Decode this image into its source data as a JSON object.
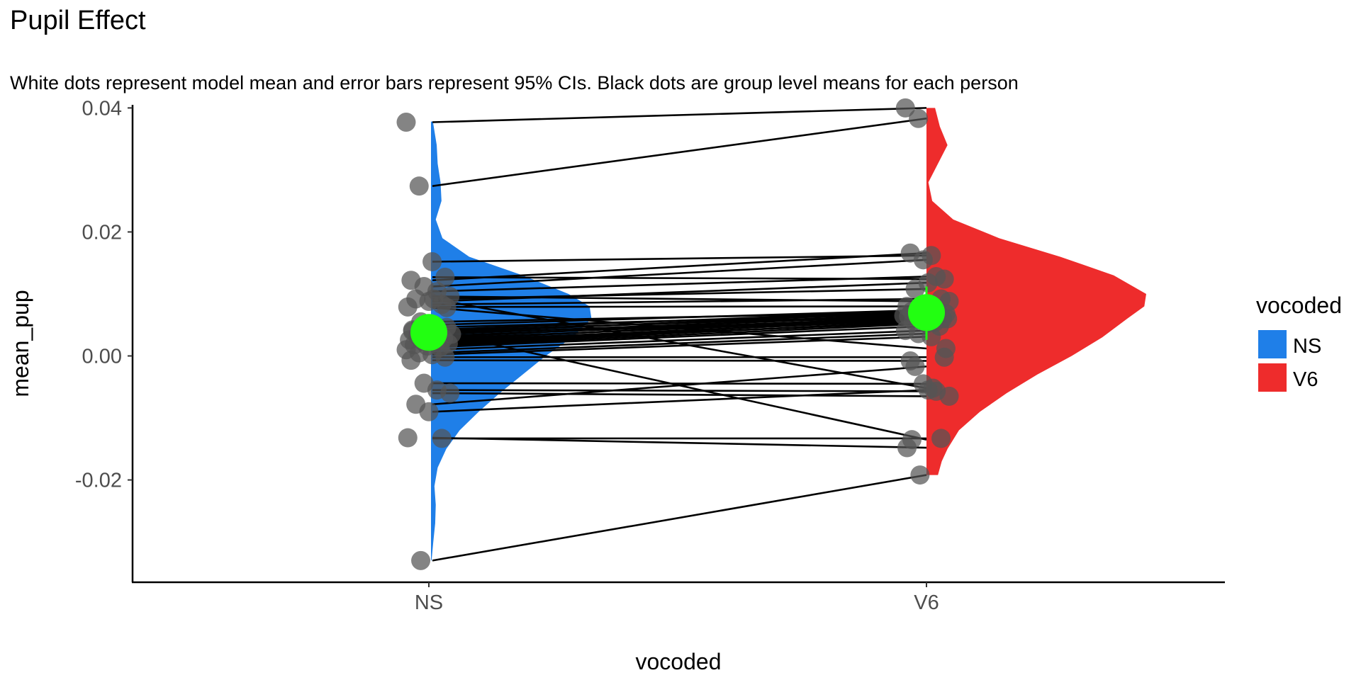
{
  "chart_data": {
    "type": "raincloud",
    "title": "Pupil Effect",
    "subtitle": "White dots represent model mean and error bars represent 95% CIs. Black dots are group level means for each person",
    "xlabel": "vocoded",
    "ylabel": "mean_pup",
    "categories": [
      "NS",
      "V6"
    ],
    "y_ticks": [
      "0.04",
      "0.02",
      "0.00",
      "-0.02"
    ],
    "y_tick_values": [
      0.04,
      0.02,
      0.0,
      -0.02
    ],
    "ylim": [
      -0.0365,
      0.0405
    ],
    "grid": false,
    "legend": {
      "title": "vocoded",
      "position": "right",
      "entries": [
        {
          "label": "NS",
          "color": "#1f7fe8"
        },
        {
          "label": "V6",
          "color": "#ee2c2c"
        }
      ]
    },
    "colors": {
      "NS": "#1f7fe8",
      "V6": "#ee2c2c",
      "model_mean": "#22ff11",
      "points": "#555555",
      "lines": "#000000"
    },
    "model_means": [
      {
        "category": "NS",
        "mean": 0.0038,
        "ci": [
          0.0025,
          0.0051
        ]
      },
      {
        "category": "V6",
        "mean": 0.007,
        "ci": [
          0.0026,
          0.0112
        ]
      }
    ],
    "density": {
      "NS": {
        "y": [
          -0.033,
          -0.03,
          -0.027,
          -0.024,
          -0.021,
          -0.018,
          -0.015,
          -0.012,
          -0.009,
          -0.006,
          -0.003,
          0.0,
          0.003,
          0.006,
          0.008,
          0.01,
          0.013,
          0.016,
          0.019,
          0.022,
          0.025,
          0.028,
          0.031,
          0.034,
          0.0378
        ],
        "density": [
          0.003,
          0.012,
          0.022,
          0.025,
          0.018,
          0.035,
          0.08,
          0.15,
          0.25,
          0.36,
          0.48,
          0.6,
          0.74,
          0.84,
          0.83,
          0.72,
          0.48,
          0.2,
          0.06,
          0.025,
          0.055,
          0.05,
          0.035,
          0.03,
          0.01
        ]
      },
      "V6": {
        "y": [
          -0.0192,
          -0.017,
          -0.015,
          -0.012,
          -0.009,
          -0.006,
          -0.003,
          0.0,
          0.003,
          0.006,
          0.008,
          0.01,
          0.013,
          0.016,
          0.019,
          0.022,
          0.025,
          0.028,
          0.031,
          0.034,
          0.037,
          0.04
        ],
        "density": [
          0.06,
          0.08,
          0.11,
          0.17,
          0.28,
          0.42,
          0.58,
          0.76,
          0.92,
          1.05,
          1.14,
          1.15,
          0.98,
          0.7,
          0.38,
          0.14,
          0.03,
          0.01,
          0.06,
          0.11,
          0.07,
          0.045
        ]
      }
    },
    "subjects": [
      {
        "NS": 0.0377,
        "V6": 0.04
      },
      {
        "NS": 0.0274,
        "V6": 0.0383
      },
      {
        "NS": 0.0152,
        "V6": 0.0162
      },
      {
        "NS": 0.0127,
        "V6": 0.0124
      },
      {
        "NS": 0.0122,
        "V6": 0.0166
      },
      {
        "NS": 0.0112,
        "V6": 0.0155
      },
      {
        "NS": 0.0104,
        "V6": 0.0128
      },
      {
        "NS": 0.0096,
        "V6": 0.0088
      },
      {
        "NS": 0.0092,
        "V6": 0.0108
      },
      {
        "NS": 0.0088,
        "V6": 0.0118
      },
      {
        "NS": 0.0083,
        "V6": 0.0092
      },
      {
        "NS": 0.0079,
        "V6": 0.008
      },
      {
        "NS": 0.0055,
        "V6": 0.007
      },
      {
        "NS": 0.005,
        "V6": 0.0074
      },
      {
        "NS": 0.0046,
        "V6": 0.0068
      },
      {
        "NS": 0.0042,
        "V6": 0.0072
      },
      {
        "NS": 0.004,
        "V6": 0.0066
      },
      {
        "NS": 0.0037,
        "V6": 0.0071
      },
      {
        "NS": 0.0035,
        "V6": 0.0065
      },
      {
        "NS": 0.0032,
        "V6": 0.0062
      },
      {
        "NS": 0.003,
        "V6": 0.0068
      },
      {
        "NS": 0.0028,
        "V6": 0.006
      },
      {
        "NS": 0.0026,
        "V6": 0.0064
      },
      {
        "NS": 0.0024,
        "V6": 0.0058
      },
      {
        "NS": 0.0022,
        "V6": 0.0054
      },
      {
        "NS": 0.002,
        "V6": 0.006
      },
      {
        "NS": 0.0018,
        "V6": 0.0056
      },
      {
        "NS": 0.0016,
        "V6": 0.0052
      },
      {
        "NS": 0.0014,
        "V6": 0.0048
      },
      {
        "NS": 0.001,
        "V6": 0.0041
      },
      {
        "NS": 0.0005,
        "V6": 0.0036
      },
      {
        "NS": 0.0002,
        "V6": 0.0031
      },
      {
        "NS": -0.0002,
        "V6": -0.0002
      },
      {
        "NS": -0.0007,
        "V6": -0.0008
      },
      {
        "NS": -0.0044,
        "V6": -0.0045
      },
      {
        "NS": -0.0055,
        "V6": -0.0057
      },
      {
        "NS": -0.006,
        "V6": -0.0065
      },
      {
        "NS": -0.0078,
        "V6": -0.0017
      },
      {
        "NS": -0.009,
        "V6": -0.0055
      },
      {
        "NS": -0.0133,
        "V6": -0.0133
      },
      {
        "NS": -0.0132,
        "V6": -0.0148
      },
      {
        "NS": -0.033,
        "V6": -0.0192
      },
      {
        "NS": 0.0092,
        "V6": -0.0052
      },
      {
        "NS": 0.0078,
        "V6": 0.0012
      },
      {
        "NS": 0.004,
        "V6": -0.0135
      }
    ]
  }
}
